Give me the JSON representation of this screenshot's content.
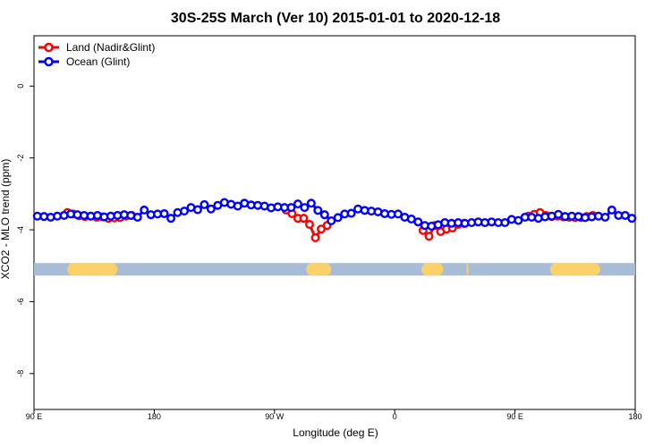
{
  "chart_data": {
    "type": "line",
    "title": "30S-25S March (Ver 10)   2015-01-01 to 2020-12-18",
    "xlabel": "Longitude (deg E)",
    "ylabel": "XCO2 - MLO trend (ppm)",
    "xlim": [
      90,
      450
    ],
    "ylim": [
      -9,
      1.4
    ],
    "x_ticks": [
      {
        "value": 90,
        "label": "90 E"
      },
      {
        "value": 162,
        "label": "180"
      },
      {
        "value": 234,
        "label": "90 W"
      },
      {
        "value": 306,
        "label": "0"
      },
      {
        "value": 378,
        "label": "90 E"
      },
      {
        "value": 450,
        "label": "180"
      }
    ],
    "y_ticks": [
      {
        "value": 0,
        "label": "0"
      },
      {
        "value": -2,
        "label": "-2"
      },
      {
        "value": -4,
        "label": "-4"
      },
      {
        "value": -6,
        "label": "-6"
      },
      {
        "value": -8,
        "label": "-8"
      }
    ],
    "legend": {
      "position": "top-left",
      "entries": [
        "Land (Nadir&Glint)",
        "Ocean (Glint)"
      ]
    },
    "colors": {
      "land": "#ff0000",
      "ocean": "#0000ff",
      "sea_band": "#a8bcd8",
      "land_band": "#fbd26a"
    },
    "series": [
      {
        "name": "Land (Nadir&Glint)",
        "color": "#ff0000",
        "segments": [
          {
            "x": [
              110,
              113.5,
              117,
              120.5,
              124,
              127.5,
              131,
              134.5,
              138,
              141.5,
              145,
              148.5
            ],
            "y": [
              -3.52,
              -3.56,
              -3.61,
              -3.63,
              -3.62,
              -3.65,
              -3.64,
              -3.68,
              -3.67,
              -3.66,
              -3.62,
              -3.6
            ]
          },
          {
            "x": [
              241,
              244.5,
              248,
              251.5,
              255,
              258.5,
              262,
              265.5
            ],
            "y": [
              -3.45,
              -3.55,
              -3.68,
              -3.68,
              -3.85,
              -4.22,
              -3.98,
              -3.88
            ]
          },
          {
            "x": [
              323,
              326.5,
              330,
              333.5,
              337,
              340.5,
              344,
              347.5
            ],
            "y": [
              -4.02,
              -4.18,
              -3.88,
              -4.05,
              -3.98,
              -3.95,
              -3.85,
              -3.82
            ]
          },
          {
            "x": [
              386,
              389.5,
              393,
              396.5,
              400,
              403.5,
              407,
              410.5,
              414,
              417.5,
              421,
              424.5
            ],
            "y": [
              -3.62,
              -3.57,
              -3.52,
              -3.6,
              -3.63,
              -3.62,
              -3.64,
              -3.65,
              -3.66,
              -3.66,
              -3.63,
              -3.6
            ]
          }
        ]
      },
      {
        "name": "Ocean (Glint)",
        "color": "#0000ff",
        "segments": [
          {
            "x": [
              92,
              96,
              100,
              104,
              108,
              112,
              116,
              120,
              124,
              128,
              132,
              136,
              140,
              144,
              148,
              152,
              156,
              160,
              164,
              168,
              172,
              176,
              180,
              184,
              188,
              192,
              196,
              200,
              204,
              208,
              212,
              216,
              220,
              224,
              228,
              232,
              236,
              240,
              244,
              248,
              252,
              256,
              260,
              264,
              268,
              272,
              276,
              280,
              284,
              288,
              292,
              296,
              300,
              304,
              308,
              312,
              316,
              320,
              324,
              328,
              332,
              336,
              340,
              344,
              348,
              352,
              356,
              360,
              364,
              368,
              372,
              376,
              380,
              384,
              388,
              392,
              396,
              400,
              404,
              408,
              412,
              416,
              420,
              424,
              428,
              432,
              436,
              440,
              444,
              448
            ],
            "y": [
              -3.62,
              -3.63,
              -3.65,
              -3.62,
              -3.6,
              -3.56,
              -3.58,
              -3.6,
              -3.62,
              -3.6,
              -3.64,
              -3.62,
              -3.6,
              -3.58,
              -3.6,
              -3.65,
              -3.45,
              -3.58,
              -3.56,
              -3.55,
              -3.68,
              -3.52,
              -3.48,
              -3.38,
              -3.44,
              -3.3,
              -3.42,
              -3.32,
              -3.24,
              -3.29,
              -3.34,
              -3.26,
              -3.31,
              -3.32,
              -3.34,
              -3.39,
              -3.36,
              -3.38,
              -3.38,
              -3.28,
              -3.38,
              -3.26,
              -3.46,
              -3.58,
              -3.75,
              -3.66,
              -3.56,
              -3.54,
              -3.42,
              -3.46,
              -3.48,
              -3.5,
              -3.55,
              -3.57,
              -3.56,
              -3.65,
              -3.7,
              -3.78,
              -3.88,
              -3.9,
              -3.86,
              -3.8,
              -3.82,
              -3.8,
              -3.82,
              -3.8,
              -3.78,
              -3.8,
              -3.78,
              -3.8,
              -3.8,
              -3.71,
              -3.74,
              -3.65,
              -3.65,
              -3.68,
              -3.64,
              -3.62,
              -3.57,
              -3.63,
              -3.62,
              -3.63,
              -3.66,
              -3.64,
              -3.62,
              -3.65,
              -3.45,
              -3.6,
              -3.6,
              -3.68
            ]
          }
        ]
      }
    ],
    "surface_band": {
      "y": -5.1,
      "land_ranges": [
        [
          110,
          140
        ],
        [
          253,
          268
        ],
        [
          322,
          335
        ],
        [
          349,
          350
        ],
        [
          399,
          429
        ]
      ]
    }
  }
}
